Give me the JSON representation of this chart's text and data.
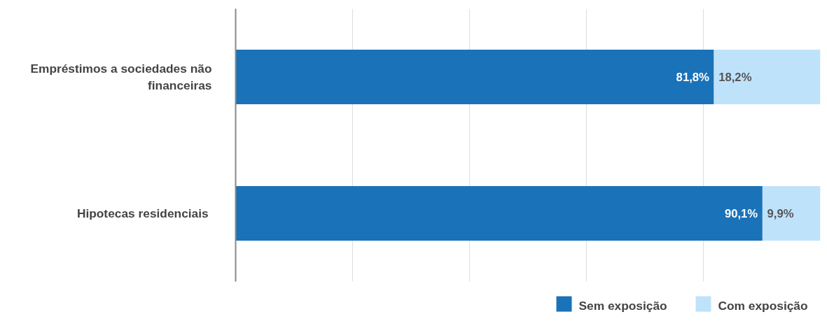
{
  "chart_data": {
    "type": "bar",
    "orientation": "horizontal",
    "stacked": true,
    "categories": [
      "Empréstimos a sociedades não financeiras",
      "Hipotecas  residenciais"
    ],
    "series": [
      {
        "name": "Sem exposição",
        "color": "#1a72b8",
        "values": [
          81.8,
          90.1
        ],
        "value_labels": [
          "81,8%",
          "90,1%"
        ]
      },
      {
        "name": "Com exposição",
        "color": "#bfe2fb",
        "values": [
          18.2,
          9.9
        ],
        "value_labels": [
          "18,2%",
          "9,9%"
        ]
      }
    ],
    "xlim": [
      0,
      100
    ],
    "xticks": [
      {
        "value": 0,
        "label": null
      },
      {
        "value": 20,
        "label": null
      },
      {
        "value": 40,
        "label": null
      },
      {
        "value": 60,
        "label": null
      },
      {
        "value": 80,
        "label": null
      }
    ],
    "tick_labels": "y",
    "grid": "x",
    "legend": "bottom"
  }
}
